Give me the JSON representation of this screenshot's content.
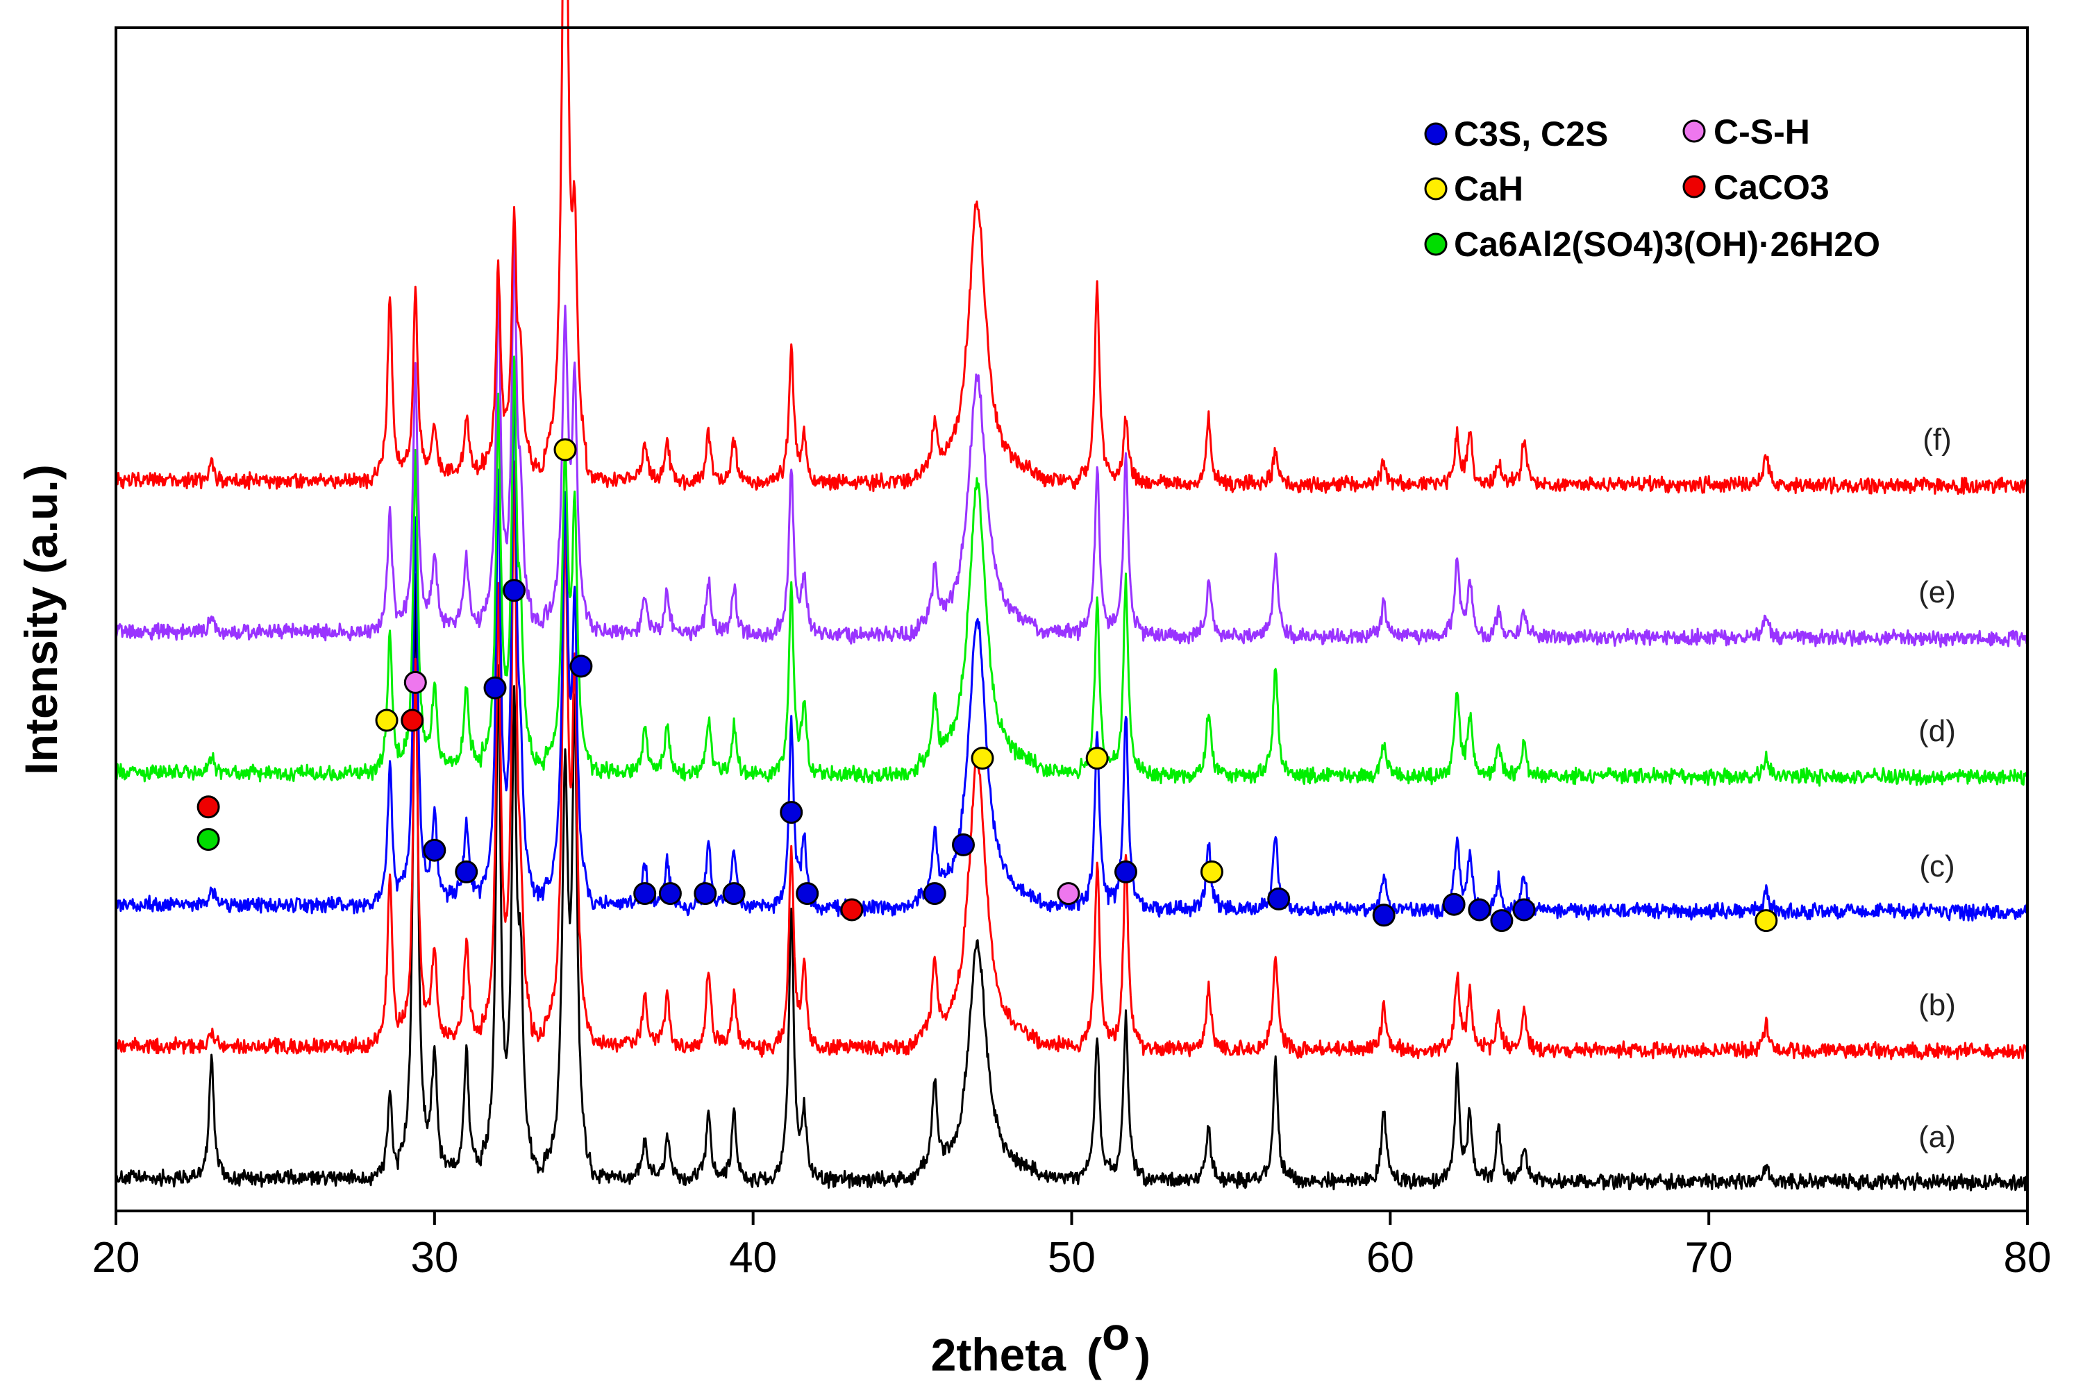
{
  "chart_data": {
    "type": "line",
    "title": "",
    "xlabel": "2theta",
    "xlabel_unit": "o",
    "ylabel": "Intensity (a.u.)",
    "xlim": [
      20,
      80
    ],
    "x_ticks": [
      20,
      30,
      40,
      50,
      60,
      70,
      80
    ],
    "y_ticks": "none",
    "grid": false,
    "peak_positions": [
      23.0,
      28.6,
      29.4,
      30.0,
      31.0,
      32.0,
      32.5,
      32.7,
      34.1,
      34.4,
      36.6,
      37.3,
      38.6,
      39.4,
      41.2,
      41.6,
      45.7,
      47.0,
      47.1,
      50.8,
      51.7,
      54.3,
      56.4,
      59.8,
      62.1,
      62.5,
      63.4,
      64.2,
      71.8
    ],
    "series": [
      {
        "name": "(a)",
        "label": "(a)",
        "color": "#000000",
        "start": 0.1,
        "end": 0.02,
        "peaks": [
          2.2,
          1.6,
          11.0,
          2.4,
          2.2,
          9.0,
          8.0,
          3.2,
          7.0,
          8.0,
          0.7,
          0.8,
          1.2,
          1.2,
          5.0,
          1.2,
          1.6,
          2.6,
          1.8,
          2.6,
          3.0,
          1.0,
          2.2,
          1.3,
          2.0,
          1.2,
          1.0,
          0.6,
          0.3
        ]
      },
      {
        "name": "(b)",
        "label": "(b)",
        "color": "#ff0000",
        "start": 0.1,
        "end": 0.0,
        "peaks": [
          0.3,
          3.2,
          7.0,
          1.8,
          1.8,
          8.0,
          10.0,
          2.0,
          9.0,
          6.0,
          1.0,
          1.0,
          1.4,
          1.0,
          3.6,
          1.4,
          1.4,
          3.4,
          2.0,
          3.4,
          3.6,
          1.2,
          1.8,
          0.8,
          1.4,
          1.0,
          0.7,
          0.7,
          0.5
        ]
      },
      {
        "name": "(c)",
        "label": "(c)",
        "color": "#0000ff",
        "start": 0.15,
        "end": 0.0,
        "peaks": [
          0.3,
          2.6,
          7.0,
          1.6,
          1.4,
          7.5,
          9.0,
          2.0,
          7.0,
          5.0,
          0.8,
          0.9,
          1.2,
          1.0,
          3.4,
          1.2,
          1.2,
          3.4,
          2.0,
          3.2,
          3.6,
          1.2,
          1.4,
          0.6,
          1.3,
          1.0,
          0.6,
          0.6,
          0.4
        ]
      },
      {
        "name": "(d)",
        "label": "(d)",
        "color": "#00ee00",
        "start": 0.08,
        "end": 0.0,
        "peaks": [
          0.3,
          2.6,
          5.8,
          1.6,
          1.4,
          6.5,
          7.0,
          2.2,
          5.5,
          4.5,
          0.8,
          0.9,
          1.0,
          0.9,
          3.4,
          1.2,
          1.2,
          3.4,
          2.0,
          3.2,
          3.6,
          1.2,
          2.0,
          0.6,
          1.6,
          1.1,
          0.6,
          0.6,
          0.4
        ]
      },
      {
        "name": "(e)",
        "label": "(e)",
        "color": "#9933ff",
        "start": 0.12,
        "end": 0.0,
        "peaks": [
          0.3,
          2.2,
          4.8,
          1.4,
          1.2,
          6.0,
          6.5,
          2.0,
          5.5,
          4.2,
          0.7,
          0.8,
          1.0,
          0.9,
          3.0,
          1.0,
          1.0,
          3.0,
          1.8,
          3.0,
          3.4,
          1.0,
          1.4,
          0.6,
          1.4,
          1.0,
          0.5,
          0.5,
          0.4
        ]
      },
      {
        "name": "(f)",
        "label": "(f)",
        "color": "#ff0000",
        "start": 0.1,
        "end": 0.0,
        "peaks": [
          0.3,
          3.4,
          3.4,
          1.0,
          1.0,
          3.6,
          4.4,
          1.8,
          13.5,
          3.8,
          0.7,
          0.8,
          0.9,
          0.8,
          2.5,
          0.8,
          0.9,
          3.4,
          1.8,
          3.6,
          1.2,
          1.2,
          0.6,
          0.4,
          0.9,
          1.0,
          0.4,
          0.9,
          0.6
        ]
      }
    ],
    "phase_markers": [
      {
        "phase": "C3S, C2S",
        "color": "#0000dd",
        "points": [
          [
            30.0,
            6.6
          ],
          [
            31.0,
            6.2
          ],
          [
            31.9,
            9.6
          ],
          [
            32.5,
            11.4
          ],
          [
            34.6,
            10.0
          ],
          [
            36.6,
            5.8
          ],
          [
            37.4,
            5.8
          ],
          [
            38.5,
            5.8
          ],
          [
            39.4,
            5.8
          ],
          [
            41.2,
            7.3
          ],
          [
            41.7,
            5.8
          ],
          [
            45.7,
            5.8
          ],
          [
            46.6,
            6.7
          ],
          [
            51.7,
            6.2
          ],
          [
            56.5,
            5.7
          ],
          [
            59.8,
            5.4
          ],
          [
            62.0,
            5.6
          ],
          [
            62.8,
            5.5
          ],
          [
            63.5,
            5.3
          ],
          [
            64.2,
            5.5
          ]
        ]
      },
      {
        "phase": "C-S-H",
        "color": "#ee77ee",
        "points": [
          [
            29.4,
            9.7
          ],
          [
            49.9,
            5.8
          ]
        ]
      },
      {
        "phase": "CaH",
        "color": "#ffee00",
        "points": [
          [
            28.5,
            9.0
          ],
          [
            34.1,
            14.0
          ],
          [
            47.2,
            8.3
          ],
          [
            50.8,
            8.3
          ],
          [
            54.4,
            6.2
          ],
          [
            71.8,
            5.3
          ]
        ]
      },
      {
        "phase": "CaCO3",
        "color": "#ee0000",
        "points": [
          [
            22.9,
            7.4
          ],
          [
            29.3,
            9.0
          ],
          [
            43.1,
            5.5
          ]
        ]
      },
      {
        "phase": "Ca6Al2(SO4)3(OH)·26H2O",
        "color": "#00dd00",
        "points": [
          [
            22.9,
            6.8
          ]
        ]
      }
    ]
  },
  "legend": {
    "items": [
      {
        "label": "C3S, C2S",
        "color": "#0000dd"
      },
      {
        "label": "C-S-H",
        "color": "#ee77ee"
      },
      {
        "label": "CaH",
        "color": "#ffee00"
      },
      {
        "label": "CaCO3",
        "color": "#ee0000"
      },
      {
        "label": "Ca6Al2(SO4)3(OH)·26H2O",
        "color": "#00dd00"
      }
    ]
  }
}
